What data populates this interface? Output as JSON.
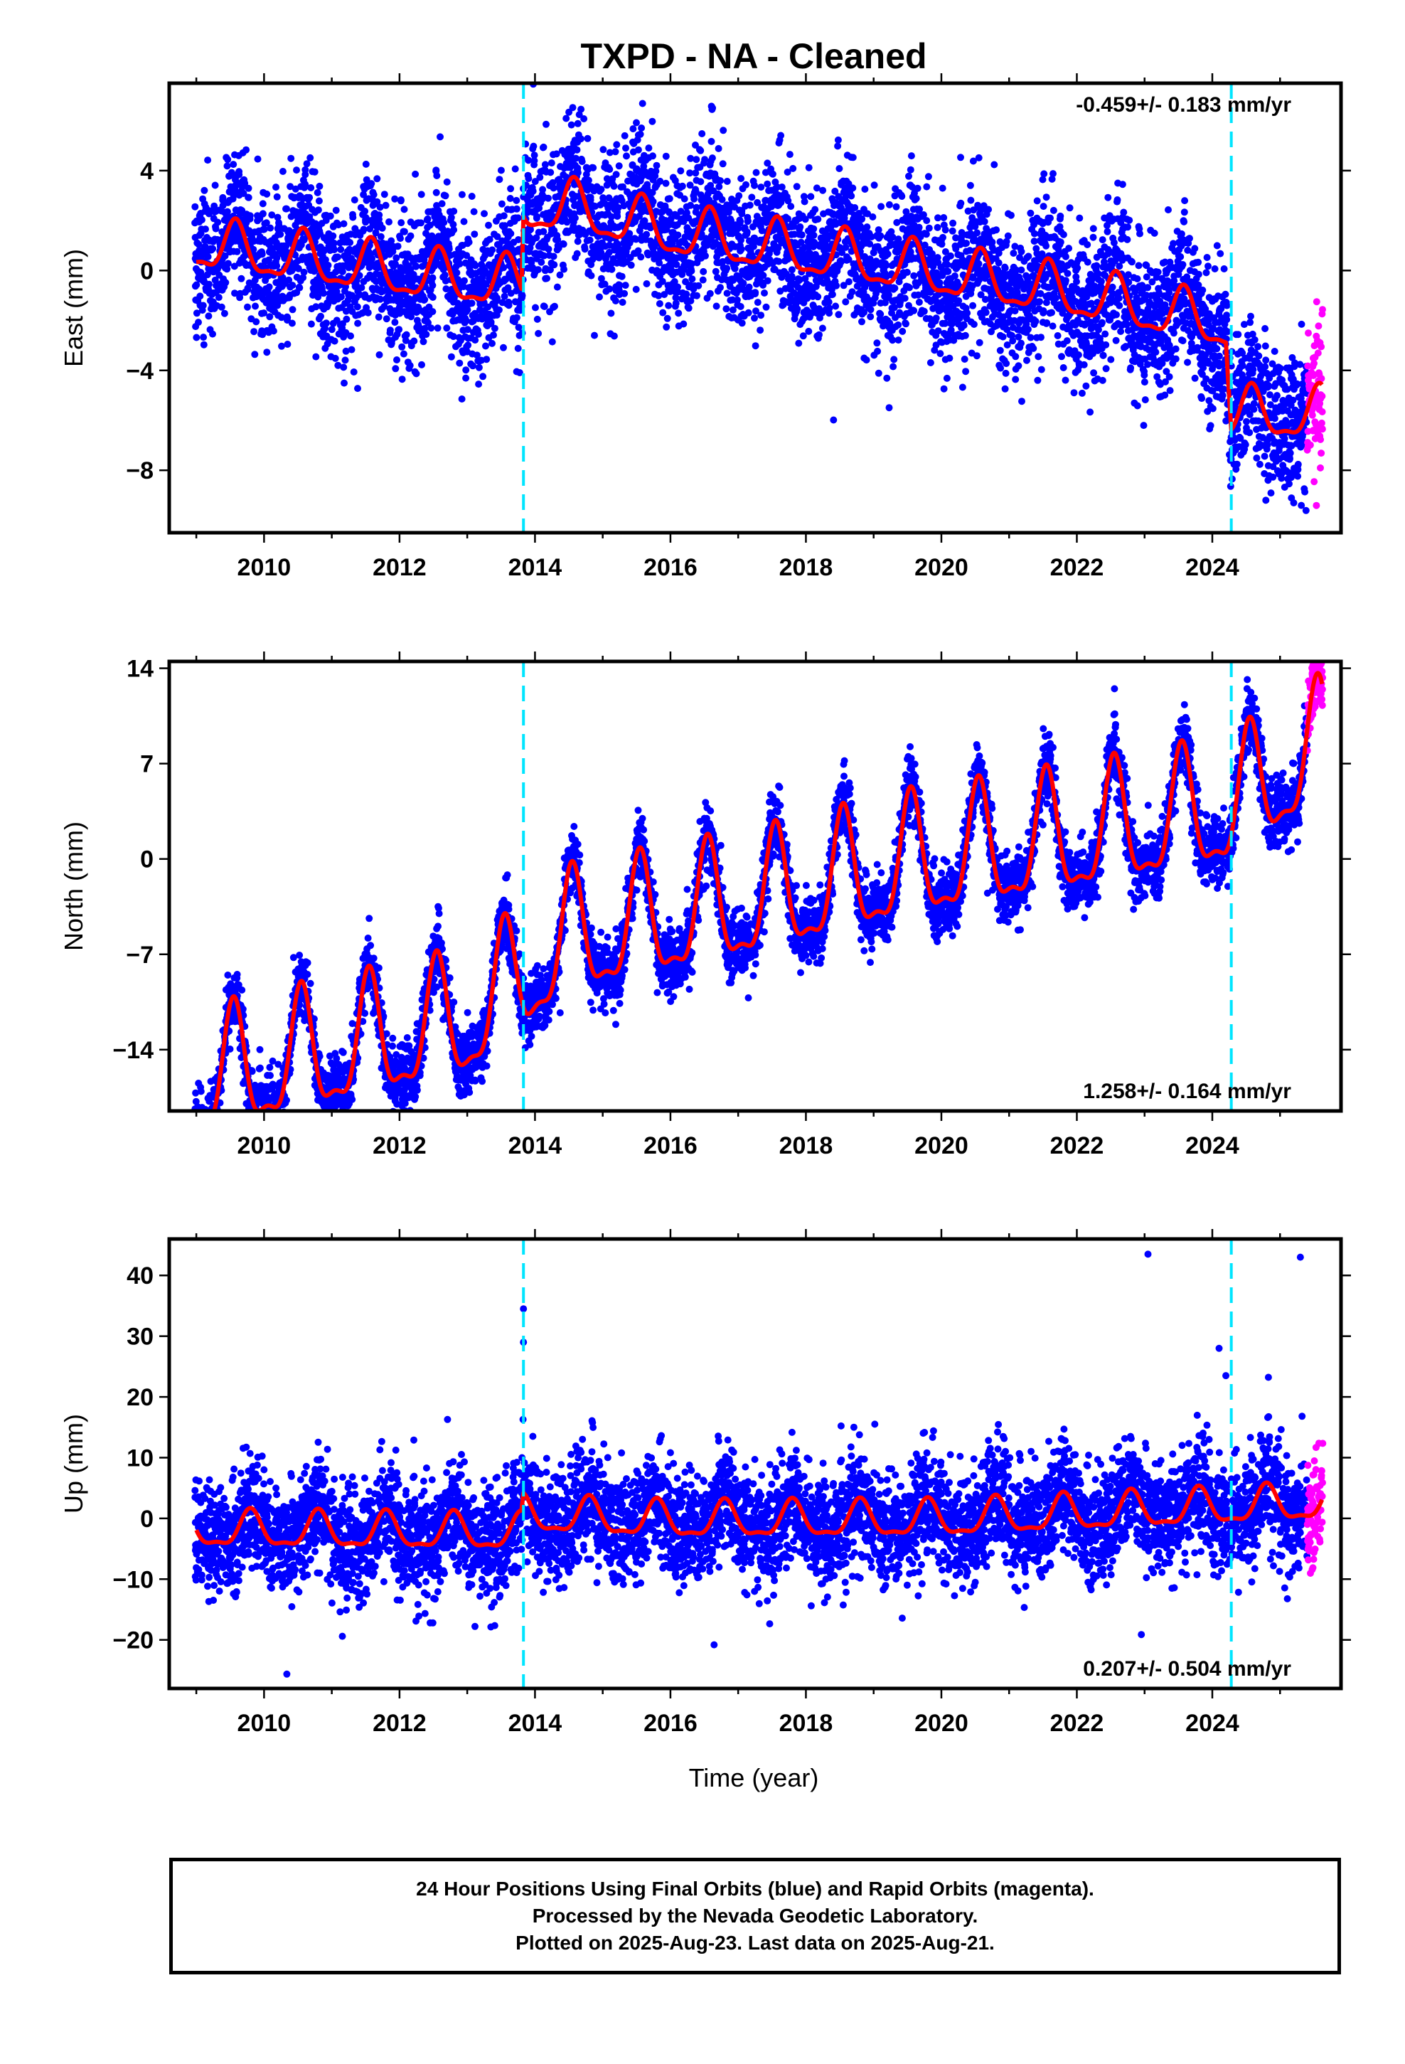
{
  "title": "TXPD  - NA - Cleaned",
  "xlabel": "Time (year)",
  "footer": {
    "line1": "24 Hour Positions Using Final Orbits (blue) and Rapid Orbits (magenta).",
    "line2": "Processed by the Nevada Geodetic Laboratory.",
    "line3": "Plotted on 2025-Aug-23. Last data on 2025-Aug-21."
  },
  "colors": {
    "final_orbits": "#0000ff",
    "rapid_orbits": "#ff00ff",
    "model": "#ff0000",
    "equipment_change": "#00e5ff"
  },
  "chart_data": [
    {
      "type": "scatter",
      "component": "east",
      "ylabel": "East (mm)",
      "rate_label": "-0.459+/- 0.183 mm/yr",
      "rate_position": "top-right",
      "xlim": [
        2008.6,
        2025.9
      ],
      "ylim": [
        -10.5,
        7.5
      ],
      "xticks": [
        2010,
        2012,
        2014,
        2016,
        2018,
        2020,
        2022,
        2024
      ],
      "yticks": [
        4,
        0,
        -4,
        -8
      ],
      "grid": false,
      "offsets": [
        2013.83,
        2024.28
      ],
      "trend": {
        "knots": [
          [
            2009.0,
            1.0
          ],
          [
            2012.5,
            -0.3
          ],
          [
            2013.8,
            -0.6
          ],
          [
            2013.83,
            2.5
          ],
          [
            2014.5,
            2.5
          ],
          [
            2016.0,
            1.5
          ],
          [
            2019.0,
            0.3
          ],
          [
            2022.0,
            -1.0
          ],
          [
            2024.2,
            -2.2
          ],
          [
            2024.28,
            -5.8
          ],
          [
            2025.6,
            -5.8
          ]
        ],
        "seasonal_amplitude": 1.3,
        "phase_year": 0.58
      },
      "scatter": {
        "noise_mm": 1.4,
        "extra_seasonal": 1.5,
        "rapid_start": 2025.4
      }
    },
    {
      "type": "scatter",
      "component": "north",
      "ylabel": "North (mm)",
      "rate_label": "1.258+/- 0.164 mm/yr",
      "rate_position": "bottom-right",
      "xlim": [
        2008.6,
        2025.9
      ],
      "ylim": [
        -18.5,
        14.5
      ],
      "xticks": [
        2010,
        2012,
        2014,
        2016,
        2018,
        2020,
        2022,
        2024
      ],
      "yticks": [
        14,
        7,
        0,
        -7,
        -14
      ],
      "grid": false,
      "offsets": [
        2013.83,
        2024.28
      ],
      "trend": {
        "knots": [
          [
            2009.0,
            -16.5
          ],
          [
            2013.0,
            -12.0
          ],
          [
            2014.5,
            -6.0
          ],
          [
            2017.5,
            -3.0
          ],
          [
            2019.5,
            -0.5
          ],
          [
            2022.0,
            1.5
          ],
          [
            2024.2,
            3.5
          ],
          [
            2025.6,
            8.0
          ]
        ],
        "seasonal_amplitude": 5.8,
        "phase_year": 0.55
      },
      "scatter": {
        "noise_mm": 1.2,
        "extra_seasonal": 0.6,
        "rapid_start": 2025.4
      }
    },
    {
      "type": "scatter",
      "component": "up",
      "ylabel": "Up (mm)",
      "rate_label": "0.207+/- 0.504 mm/yr",
      "rate_position": "bottom-right",
      "xlim": [
        2008.6,
        2025.9
      ],
      "ylim": [
        -28,
        46
      ],
      "xticks": [
        2010,
        2012,
        2014,
        2016,
        2018,
        2020,
        2022,
        2024
      ],
      "yticks": [
        40,
        30,
        20,
        10,
        0,
        -10,
        -20
      ],
      "grid": false,
      "offsets": [
        2013.83,
        2024.28
      ],
      "trend": {
        "knots": [
          [
            2009.0,
            -2.0
          ],
          [
            2013.8,
            -2.5
          ],
          [
            2013.83,
            0.5
          ],
          [
            2016.0,
            -0.5
          ],
          [
            2020.0,
            -0.3
          ],
          [
            2025.6,
            2.5
          ]
        ],
        "seasonal_amplitude": 3.8,
        "phase_year": 0.8
      },
      "scatter": {
        "noise_mm": 4.5,
        "extra_seasonal": 1.0,
        "rapid_start": 2025.4
      },
      "outliers": [
        [
          2013.83,
          34.5
        ],
        [
          2013.83,
          29.0
        ],
        [
          2023.05,
          43.5
        ],
        [
          2025.3,
          43.0
        ],
        [
          2024.1,
          28.0
        ],
        [
          2024.2,
          23.5
        ]
      ]
    }
  ]
}
